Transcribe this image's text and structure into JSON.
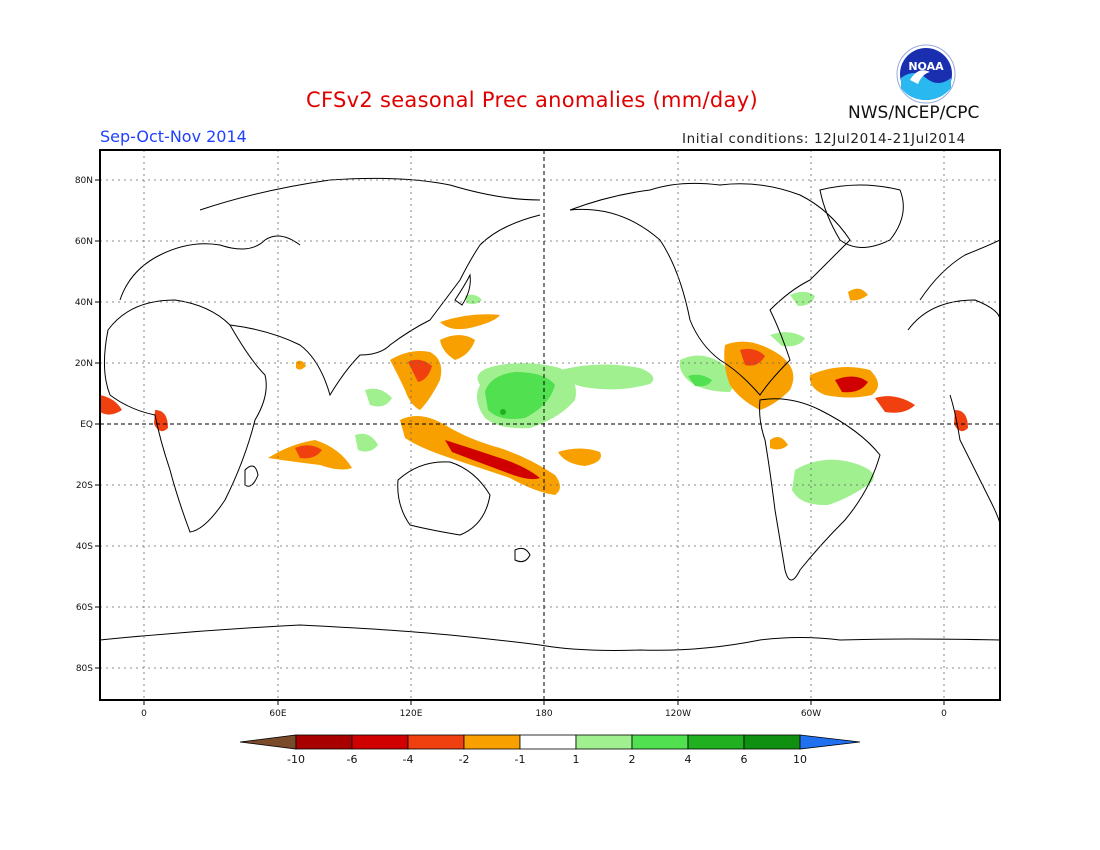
{
  "header": {
    "title": "CFSv2 seasonal Prec anomalies (mm/day)",
    "season": "Sep-Oct-Nov 2014",
    "initial_conditions": "Initial conditions: 12Jul2014-21Jul2014",
    "agency": "NWS/NCEP/CPC",
    "logo_text": "NOAA"
  },
  "map": {
    "lat_ticks": [
      "80N",
      "60N",
      "40N",
      "20N",
      "EQ",
      "20S",
      "40S",
      "60S",
      "80S"
    ],
    "lon_ticks": [
      "0",
      "60E",
      "120E",
      "180",
      "120W",
      "60W",
      "0"
    ]
  },
  "colorbar": {
    "labels": [
      "-10",
      "-6",
      "-4",
      "-2",
      "-1",
      "1",
      "2",
      "4",
      "6",
      "10"
    ],
    "colors": [
      "#7a4a2a",
      "#a80000",
      "#d00000",
      "#f04010",
      "#f8a000",
      "#ffffff",
      "#a0f090",
      "#50e050",
      "#20b020",
      "#109010",
      "#2070f0"
    ]
  },
  "colors": {
    "title": "#e00000",
    "season": "#2040ff",
    "dry_light": "#f8a000",
    "dry_medium": "#f04010",
    "dry_strong": "#d00000",
    "wet_light": "#a0f090",
    "wet_medium": "#50e050",
    "wet_strong": "#20b020"
  }
}
